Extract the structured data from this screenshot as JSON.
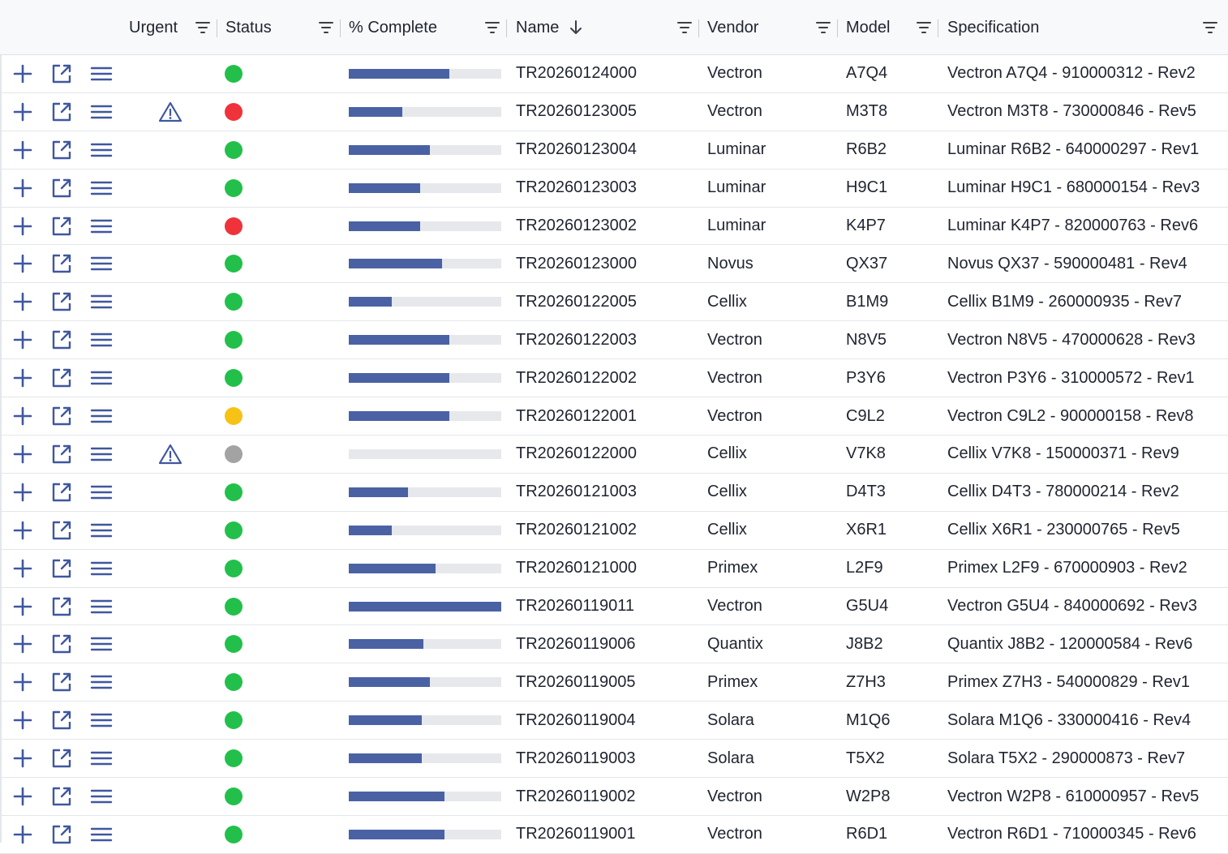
{
  "colors": {
    "icon_blue": "#3f57a0",
    "progress_fill": "#4a62a4",
    "progress_track": "#e6e8ec",
    "status": {
      "green": "#22c04b",
      "red": "#f0323a",
      "yellow": "#f7c216",
      "gray": "#a3a3a3"
    }
  },
  "columns": {
    "urgent": "Urgent",
    "status": "Status",
    "complete": "% Complete",
    "name": "Name",
    "vendor": "Vendor",
    "model": "Model",
    "specification": "Specification"
  },
  "icons": {
    "add": "plus-icon",
    "edit": "open-external-icon",
    "menu": "menu-icon",
    "urgent": "warning-triangle-icon",
    "filter": "filter-icon",
    "sort": "arrow-down-icon"
  },
  "rows": [
    {
      "urgent": false,
      "status": "green",
      "complete": 0.66,
      "name": "TR20260124000",
      "vendor": "Vectron",
      "model": "A7Q4",
      "spec": "Vectron A7Q4 - 910000312 - Rev2"
    },
    {
      "urgent": true,
      "status": "red",
      "complete": 0.35,
      "name": "TR20260123005",
      "vendor": "Vectron",
      "model": "M3T8",
      "spec": "Vectron M3T8 - 730000846 - Rev5"
    },
    {
      "urgent": false,
      "status": "green",
      "complete": 0.53,
      "name": "TR20260123004",
      "vendor": "Luminar",
      "model": "R6B2",
      "spec": "Luminar R6B2 - 640000297 - Rev1"
    },
    {
      "urgent": false,
      "status": "green",
      "complete": 0.47,
      "name": "TR20260123003",
      "vendor": "Luminar",
      "model": "H9C1",
      "spec": "Luminar H9C1 - 680000154 - Rev3"
    },
    {
      "urgent": false,
      "status": "red",
      "complete": 0.47,
      "name": "TR20260123002",
      "vendor": "Luminar",
      "model": "K4P7",
      "spec": "Luminar K4P7 - 820000763 - Rev6"
    },
    {
      "urgent": false,
      "status": "green",
      "complete": 0.61,
      "name": "TR20260123000",
      "vendor": "Novus",
      "model": "QX37",
      "spec": "Novus QX37 - 590000481 - Rev4"
    },
    {
      "urgent": false,
      "status": "green",
      "complete": 0.28,
      "name": "TR20260122005",
      "vendor": "Cellix",
      "model": "B1M9",
      "spec": "Cellix B1M9 - 260000935 - Rev7"
    },
    {
      "urgent": false,
      "status": "green",
      "complete": 0.66,
      "name": "TR20260122003",
      "vendor": "Vectron",
      "model": "N8V5",
      "spec": "Vectron N8V5 - 470000628 - Rev3"
    },
    {
      "urgent": false,
      "status": "green",
      "complete": 0.66,
      "name": "TR20260122002",
      "vendor": "Vectron",
      "model": "P3Y6",
      "spec": "Vectron P3Y6 - 310000572 - Rev1"
    },
    {
      "urgent": false,
      "status": "yellow",
      "complete": 0.66,
      "name": "TR20260122001",
      "vendor": "Vectron",
      "model": "C9L2",
      "spec": "Vectron C9L2 - 900000158 - Rev8"
    },
    {
      "urgent": true,
      "status": "gray",
      "complete": 0.0,
      "name": "TR20260122000",
      "vendor": "Cellix",
      "model": "V7K8",
      "spec": "Cellix V7K8 - 150000371 - Rev9"
    },
    {
      "urgent": false,
      "status": "green",
      "complete": 0.39,
      "name": "TR20260121003",
      "vendor": "Cellix",
      "model": "D4T3",
      "spec": "Cellix D4T3 - 780000214 - Rev2"
    },
    {
      "urgent": false,
      "status": "green",
      "complete": 0.28,
      "name": "TR20260121002",
      "vendor": "Cellix",
      "model": "X6R1",
      "spec": "Cellix X6R1 - 230000765 - Rev5"
    },
    {
      "urgent": false,
      "status": "green",
      "complete": 0.57,
      "name": "TR20260121000",
      "vendor": "Primex",
      "model": "L2F9",
      "spec": "Primex L2F9 - 670000903 - Rev2"
    },
    {
      "urgent": false,
      "status": "green",
      "complete": 1.0,
      "name": "TR20260119011",
      "vendor": "Vectron",
      "model": "G5U4",
      "spec": "Vectron G5U4 - 840000692 - Rev3"
    },
    {
      "urgent": false,
      "status": "green",
      "complete": 0.49,
      "name": "TR20260119006",
      "vendor": "Quantix",
      "model": "J8B2",
      "spec": "Quantix J8B2 - 120000584 - Rev6"
    },
    {
      "urgent": false,
      "status": "green",
      "complete": 0.53,
      "name": "TR20260119005",
      "vendor": "Primex",
      "model": "Z7H3",
      "spec": "Primex Z7H3 - 540000829 - Rev1"
    },
    {
      "urgent": false,
      "status": "green",
      "complete": 0.48,
      "name": "TR20260119004",
      "vendor": "Solara",
      "model": "M1Q6",
      "spec": "Solara M1Q6 - 330000416 - Rev4"
    },
    {
      "urgent": false,
      "status": "green",
      "complete": 0.48,
      "name": "TR20260119003",
      "vendor": "Solara",
      "model": "T5X2",
      "spec": "Solara T5X2 - 290000873 - Rev7"
    },
    {
      "urgent": false,
      "status": "green",
      "complete": 0.63,
      "name": "TR20260119002",
      "vendor": "Vectron",
      "model": "W2P8",
      "spec": "Vectron W2P8 - 610000957 - Rev5"
    },
    {
      "urgent": false,
      "status": "green",
      "complete": 0.63,
      "name": "TR20260119001",
      "vendor": "Vectron",
      "model": "R6D1",
      "spec": "Vectron R6D1 - 710000345 - Rev6"
    }
  ]
}
